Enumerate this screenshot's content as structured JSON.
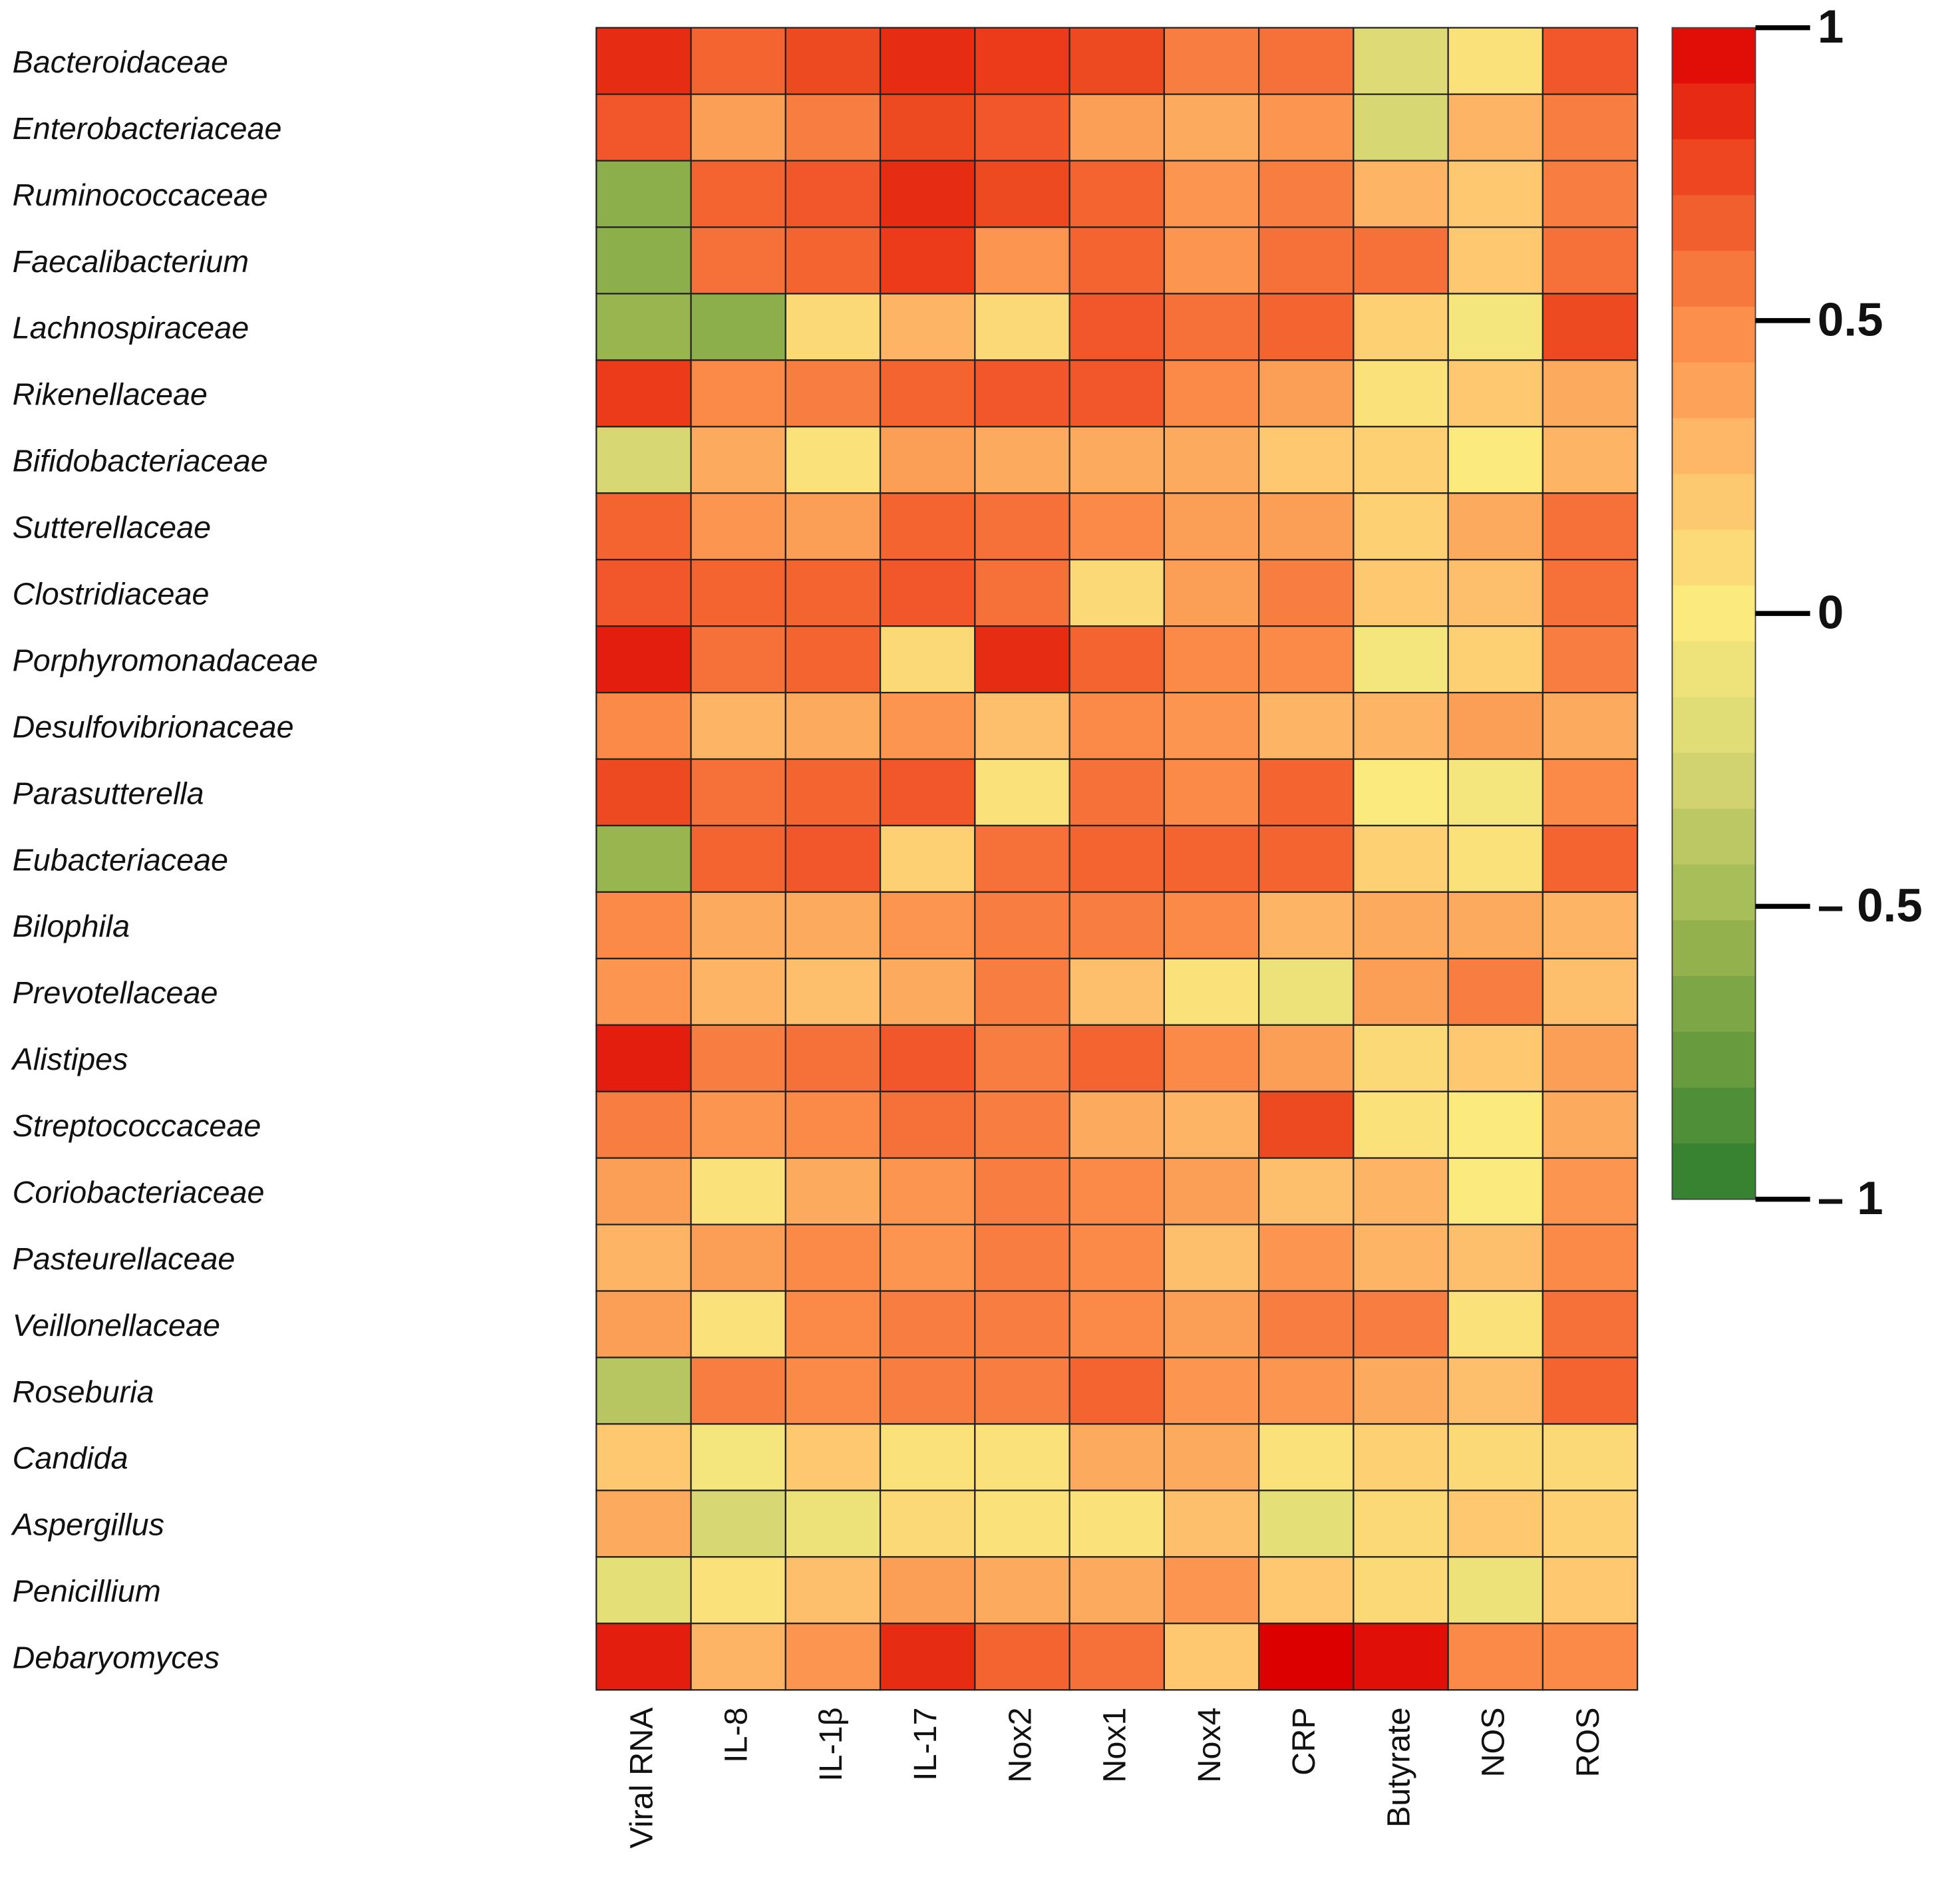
{
  "chart_data": {
    "type": "heatmap",
    "rows": [
      "Bacteroidaceae",
      "Enterobacteriaceae",
      "Ruminococcaceae",
      "Faecalibacterium",
      "Lachnospiraceae",
      "Rikenellaceae",
      "Bifidobacteriaceae",
      "Sutterellaceae",
      "Clostridiaceae",
      "Porphyromonadaceae",
      "Desulfovibrionaceae",
      "Parasutterella",
      "Eubacteriaceae",
      "Bilophila",
      "Prevotellaceae",
      "Alistipes",
      "Streptococcaceae",
      "Coriobacteriaceae",
      "Pasteurellaceae",
      "Veillonellaceae",
      "Roseburia",
      "Candida",
      "Aspergillus",
      "Penicillium",
      "Debaryomyces"
    ],
    "columns": [
      "Viral RNA",
      "IL-8",
      "IL-1β",
      "IL-17",
      "Nox2",
      "Nox1",
      "Nox4",
      "CRP",
      "Butyrate",
      "NOS",
      "ROS"
    ],
    "values": [
      [
        0.85,
        0.65,
        0.75,
        0.85,
        0.8,
        0.75,
        0.55,
        0.6,
        -0.2,
        0.05,
        0.7
      ],
      [
        0.7,
        0.4,
        0.55,
        0.75,
        0.7,
        0.4,
        0.35,
        0.45,
        -0.25,
        0.3,
        0.55
      ],
      [
        -0.6,
        0.65,
        0.7,
        0.85,
        0.75,
        0.65,
        0.45,
        0.55,
        0.3,
        0.2,
        0.55
      ],
      [
        -0.6,
        0.6,
        0.65,
        0.8,
        0.45,
        0.65,
        0.45,
        0.6,
        0.6,
        0.2,
        0.6
      ],
      [
        -0.55,
        -0.6,
        0.1,
        0.3,
        0.1,
        0.7,
        0.6,
        0.65,
        0.15,
        -0.05,
        0.75
      ],
      [
        0.8,
        0.5,
        0.55,
        0.65,
        0.7,
        0.7,
        0.5,
        0.4,
        0.05,
        0.2,
        0.35
      ],
      [
        -0.25,
        0.35,
        0.05,
        0.4,
        0.35,
        0.35,
        0.35,
        0.2,
        0.15,
        0.0,
        0.3
      ],
      [
        0.65,
        0.45,
        0.4,
        0.65,
        0.6,
        0.5,
        0.4,
        0.4,
        0.15,
        0.35,
        0.6
      ],
      [
        0.7,
        0.65,
        0.65,
        0.7,
        0.6,
        0.1,
        0.4,
        0.55,
        0.2,
        0.25,
        0.6
      ],
      [
        0.9,
        0.6,
        0.65,
        0.1,
        0.85,
        0.65,
        0.5,
        0.5,
        -0.05,
        0.15,
        0.55
      ],
      [
        0.5,
        0.3,
        0.35,
        0.45,
        0.25,
        0.5,
        0.45,
        0.3,
        0.3,
        0.4,
        0.35
      ],
      [
        0.75,
        0.6,
        0.65,
        0.7,
        0.05,
        0.6,
        0.5,
        0.65,
        0.0,
        -0.05,
        0.5
      ],
      [
        -0.55,
        0.65,
        0.7,
        0.15,
        0.6,
        0.65,
        0.65,
        0.65,
        0.15,
        0.05,
        0.65
      ],
      [
        0.5,
        0.35,
        0.35,
        0.45,
        0.55,
        0.55,
        0.5,
        0.3,
        0.35,
        0.35,
        0.3
      ],
      [
        0.45,
        0.3,
        0.25,
        0.35,
        0.55,
        0.25,
        0.05,
        -0.1,
        0.4,
        0.55,
        0.25
      ],
      [
        0.9,
        0.55,
        0.6,
        0.7,
        0.55,
        0.65,
        0.5,
        0.4,
        0.1,
        0.2,
        0.4
      ],
      [
        0.55,
        0.45,
        0.5,
        0.6,
        0.55,
        0.35,
        0.3,
        0.75,
        0.05,
        0.0,
        0.35
      ],
      [
        0.4,
        0.05,
        0.35,
        0.45,
        0.55,
        0.5,
        0.4,
        0.25,
        0.3,
        0.0,
        0.45
      ],
      [
        0.3,
        0.4,
        0.5,
        0.45,
        0.55,
        0.5,
        0.25,
        0.45,
        0.3,
        0.25,
        0.5
      ],
      [
        0.4,
        0.05,
        0.5,
        0.55,
        0.55,
        0.5,
        0.4,
        0.55,
        0.55,
        0.05,
        0.6
      ],
      [
        -0.4,
        0.55,
        0.5,
        0.55,
        0.55,
        0.65,
        0.45,
        0.45,
        0.35,
        0.25,
        0.65
      ],
      [
        0.2,
        -0.05,
        0.2,
        0.05,
        0.05,
        0.35,
        0.35,
        0.05,
        0.15,
        0.1,
        0.1
      ],
      [
        0.35,
        -0.25,
        -0.1,
        0.1,
        0.05,
        0.05,
        0.25,
        -0.15,
        0.1,
        0.2,
        0.15
      ],
      [
        -0.15,
        0.05,
        0.25,
        0.4,
        0.35,
        0.35,
        0.45,
        0.2,
        0.1,
        -0.1,
        0.2
      ],
      [
        0.9,
        0.3,
        0.45,
        0.85,
        0.65,
        0.6,
        0.2,
        1.0,
        0.95,
        0.5,
        0.5
      ]
    ],
    "zlim": [
      -1,
      1
    ],
    "colorscale": [
      "#2b7d2e",
      "#6a9c3e",
      "#a3bb55",
      "#d7d774",
      "#fbea7e",
      "#fdbf6c",
      "#fb8a48",
      "#ee4a22",
      "#dd0000"
    ],
    "colorbar_ticks": [
      1,
      0.5,
      0,
      {
        "value": -0.5,
        "label": "– 0.5"
      },
      {
        "value": -1,
        "label": "– 1"
      }
    ]
  }
}
